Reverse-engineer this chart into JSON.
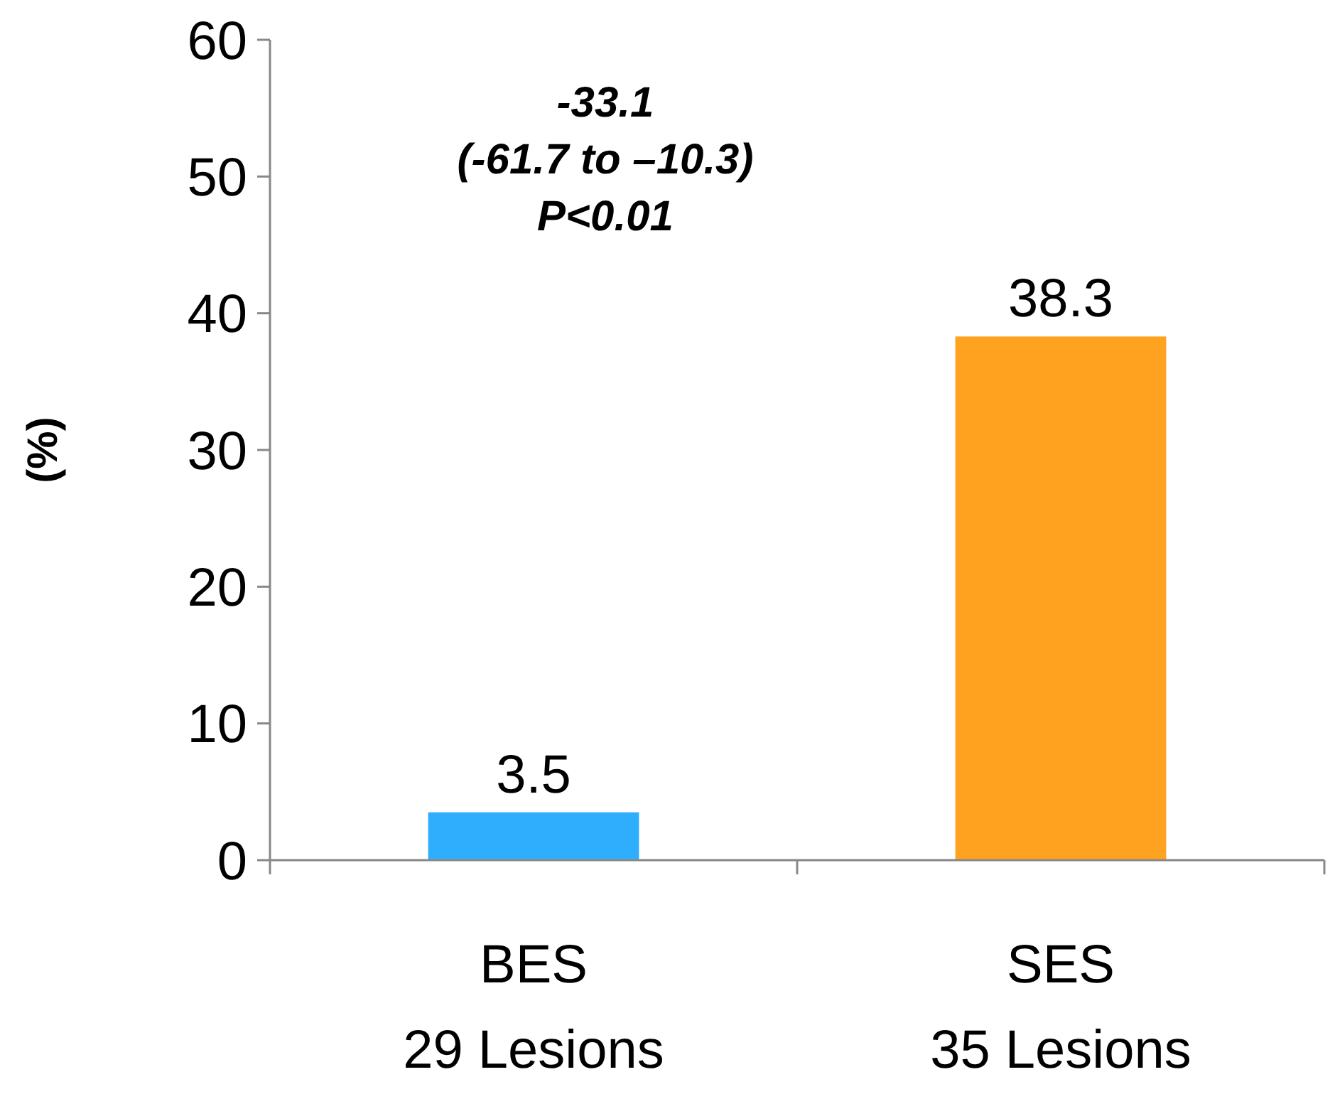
{
  "chart_data": {
    "type": "bar",
    "ylabel": "(%)",
    "categories": [
      "BES\n29 Lesions",
      "SES\n35 Lesions"
    ],
    "values": [
      3.5,
      38.3
    ],
    "colors": [
      "#2eaefc",
      "#ffa21f"
    ],
    "ylim": [
      0,
      60
    ],
    "yticks": [
      0,
      10,
      20,
      30,
      40,
      50,
      60
    ],
    "data_labels": true,
    "grid": false,
    "annotations": [
      "-33.1\n(-61.7 to –10.3)\nP<0.01"
    ]
  }
}
